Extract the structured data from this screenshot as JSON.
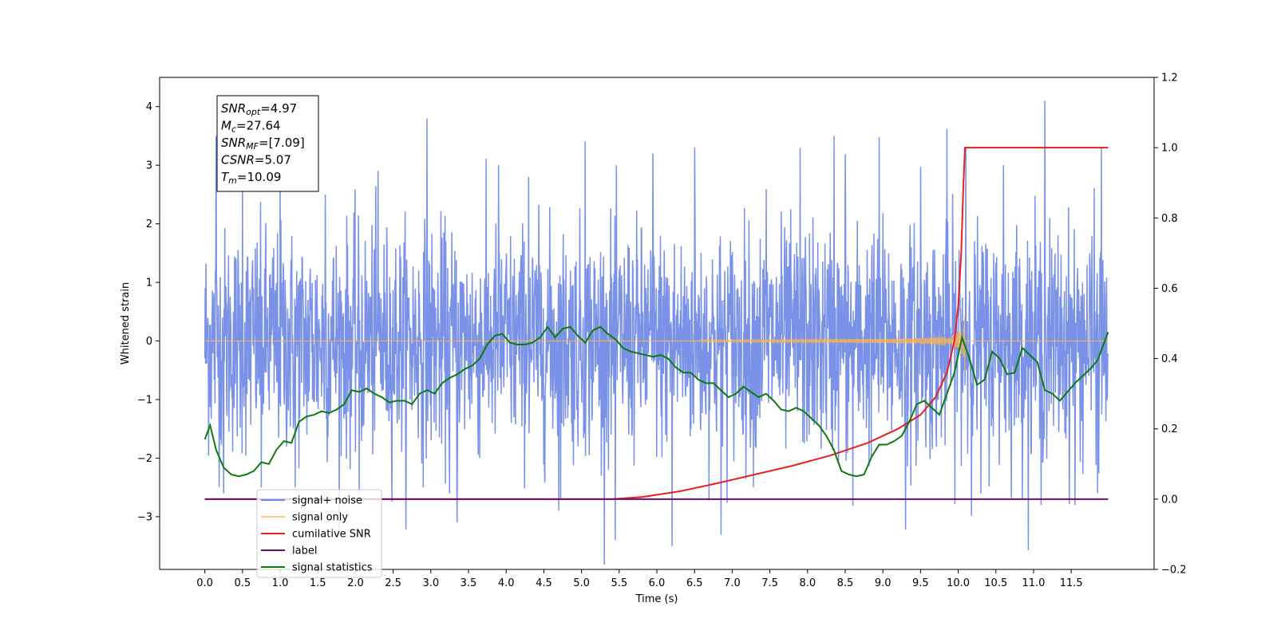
{
  "chart_data": {
    "type": "line",
    "xlabel": "Time (s)",
    "ylabel": "Whitened strain",
    "x_ticks": [
      "0.0",
      "0.5",
      "1.0",
      "1.5",
      "2.0",
      "2.5",
      "3.0",
      "3.5",
      "4.0",
      "4.5",
      "5.0",
      "5.5",
      "6.0",
      "6.5",
      "7.0",
      "7.5",
      "8.0",
      "8.5",
      "9.0",
      "9.5",
      "10.0",
      "10.5",
      "11.0",
      "11.5"
    ],
    "xlim": [
      -0.6,
      12.6
    ],
    "ylim_left": [
      -3.9,
      4.5
    ],
    "ylim_right": [
      -0.2,
      1.2
    ],
    "y_ticks_left": [
      -3,
      -2,
      -1,
      0,
      1,
      2,
      3,
      4
    ],
    "y_tick_labels_left": [
      "−3",
      "−2",
      "−1",
      "0",
      "1",
      "2",
      "3",
      "4"
    ],
    "y_ticks_right": [
      -0.2,
      0.0,
      0.2,
      0.4,
      0.6,
      0.8,
      1.0,
      1.2
    ],
    "y_tick_labels_right": [
      "−0.2",
      "0.0",
      "0.2",
      "0.4",
      "0.6",
      "0.8",
      "1.0",
      "1.2"
    ],
    "legend_position": "bottom-left",
    "grid": false,
    "annotation": {
      "lines": [
        {
          "main": "SNR",
          "sub": "opt",
          "value": "=4.97"
        },
        {
          "main": "M",
          "sub": "c",
          "value": "=27.64"
        },
        {
          "main": "SNR",
          "sub": "MF",
          "value": "=[7.09]"
        },
        {
          "main": "CSNR",
          "sub": "",
          "value": "=5.07"
        },
        {
          "main": "T",
          "sub": "m",
          "value": "=10.09"
        }
      ]
    },
    "series": [
      {
        "name": "signal+ noise",
        "color": "#6a85e3",
        "axis": "left",
        "x_range": [
          0.0,
          11.99
        ],
        "kind": "noise",
        "std": 1.0,
        "peaks": [
          [
            0.15,
            3.5
          ],
          [
            0.25,
            -2.6
          ],
          [
            0.5,
            2.9
          ],
          [
            0.75,
            -2.5
          ],
          [
            1.0,
            3.0
          ],
          [
            1.2,
            -2.5
          ],
          [
            1.6,
            2.5
          ],
          [
            2.05,
            -2.6
          ],
          [
            2.3,
            2.9
          ],
          [
            2.95,
            3.8
          ],
          [
            3.25,
            -2.6
          ],
          [
            3.35,
            -3.1
          ],
          [
            3.9,
            3.0
          ],
          [
            4.3,
            2.8
          ],
          [
            4.7,
            -2.9
          ],
          [
            5.05,
            3.4
          ],
          [
            5.45,
            -3.4
          ],
          [
            5.95,
            3.2
          ],
          [
            6.2,
            -3.5
          ],
          [
            6.5,
            3.3
          ],
          [
            6.85,
            -3.3
          ],
          [
            7.45,
            2.6
          ],
          [
            7.9,
            3.3
          ],
          [
            8.35,
            3.5
          ],
          [
            8.5,
            3.2
          ],
          [
            8.6,
            -2.8
          ],
          [
            8.95,
            3.5
          ],
          [
            9.3,
            -3.2
          ],
          [
            9.5,
            3.0
          ],
          [
            9.85,
            3.6
          ],
          [
            10.1,
            3.3
          ],
          [
            10.3,
            -2.6
          ],
          [
            10.6,
            3.0
          ],
          [
            11.15,
            4.1
          ],
          [
            11.1,
            -2.8
          ],
          [
            11.55,
            -2.8
          ],
          [
            11.9,
            3.3
          ],
          [
            11.85,
            -2.6
          ]
        ]
      },
      {
        "name": "signal only",
        "color": "#ffb74d",
        "axis": "left",
        "kind": "chirp",
        "merger_time": 10.09,
        "peak_amplitude": 1.0
      },
      {
        "name": "cumilative SNR",
        "color": "#e8201e",
        "axis": "right",
        "x": [
          0.0,
          5.4,
          5.8,
          6.3,
          6.8,
          7.3,
          7.8,
          8.3,
          8.8,
          9.2,
          9.5,
          9.7,
          9.85,
          9.95,
          10.0,
          10.04,
          10.07,
          10.09,
          11.99
        ],
        "y": [
          0.0,
          0.0,
          0.006,
          0.022,
          0.045,
          0.07,
          0.095,
          0.124,
          0.16,
          0.2,
          0.24,
          0.29,
          0.36,
          0.45,
          0.55,
          0.7,
          0.9,
          1.0,
          1.0
        ]
      },
      {
        "name": "label",
        "color": "#6b0f6b",
        "axis": "right",
        "x": [
          0.0,
          11.99
        ],
        "y": [
          0.0,
          0.0
        ]
      },
      {
        "name": "signal statistics",
        "color": "#0f7a0f",
        "axis": "right",
        "x": [
          0.0,
          0.07,
          0.15,
          0.25,
          0.35,
          0.45,
          0.55,
          0.65,
          0.75,
          0.85,
          0.95,
          1.05,
          1.15,
          1.25,
          1.35,
          1.45,
          1.55,
          1.65,
          1.75,
          1.85,
          1.95,
          2.05,
          2.15,
          2.25,
          2.35,
          2.45,
          2.55,
          2.65,
          2.75,
          2.85,
          2.95,
          3.05,
          3.15,
          3.25,
          3.35,
          3.45,
          3.55,
          3.65,
          3.75,
          3.85,
          3.95,
          4.05,
          4.15,
          4.25,
          4.35,
          4.45,
          4.55,
          4.65,
          4.75,
          4.85,
          4.95,
          5.05,
          5.15,
          5.25,
          5.35,
          5.45,
          5.55,
          5.65,
          5.75,
          5.85,
          5.95,
          6.05,
          6.15,
          6.25,
          6.35,
          6.45,
          6.55,
          6.65,
          6.75,
          6.85,
          6.95,
          7.05,
          7.15,
          7.25,
          7.35,
          7.45,
          7.55,
          7.65,
          7.75,
          7.85,
          7.95,
          8.05,
          8.15,
          8.25,
          8.35,
          8.45,
          8.55,
          8.65,
          8.75,
          8.85,
          8.95,
          9.05,
          9.15,
          9.25,
          9.35,
          9.45,
          9.55,
          9.65,
          9.75,
          9.85,
          9.95,
          10.05,
          10.15,
          10.25,
          10.35,
          10.45,
          10.55,
          10.65,
          10.75,
          10.85,
          10.95,
          11.05,
          11.15,
          11.25,
          11.35,
          11.45,
          11.55,
          11.65,
          11.75,
          11.85,
          11.99
        ],
        "y": [
          0.17,
          0.21,
          0.14,
          0.09,
          0.07,
          0.065,
          0.07,
          0.08,
          0.105,
          0.1,
          0.14,
          0.165,
          0.16,
          0.22,
          0.235,
          0.24,
          0.25,
          0.245,
          0.255,
          0.27,
          0.31,
          0.305,
          0.315,
          0.3,
          0.29,
          0.275,
          0.28,
          0.28,
          0.27,
          0.3,
          0.31,
          0.3,
          0.33,
          0.345,
          0.355,
          0.37,
          0.38,
          0.4,
          0.44,
          0.465,
          0.47,
          0.445,
          0.44,
          0.44,
          0.445,
          0.46,
          0.49,
          0.46,
          0.485,
          0.49,
          0.465,
          0.445,
          0.48,
          0.49,
          0.47,
          0.455,
          0.43,
          0.42,
          0.415,
          0.41,
          0.405,
          0.41,
          0.4,
          0.375,
          0.36,
          0.36,
          0.34,
          0.33,
          0.33,
          0.31,
          0.29,
          0.3,
          0.32,
          0.305,
          0.29,
          0.3,
          0.28,
          0.255,
          0.25,
          0.26,
          0.25,
          0.23,
          0.21,
          0.18,
          0.14,
          0.08,
          0.07,
          0.065,
          0.07,
          0.12,
          0.155,
          0.155,
          0.165,
          0.18,
          0.22,
          0.27,
          0.28,
          0.26,
          0.24,
          0.3,
          0.36,
          0.46,
          0.4,
          0.325,
          0.34,
          0.42,
          0.4,
          0.355,
          0.36,
          0.43,
          0.41,
          0.39,
          0.31,
          0.3,
          0.28,
          0.305,
          0.33,
          0.35,
          0.37,
          0.395,
          0.475
        ]
      }
    ]
  }
}
